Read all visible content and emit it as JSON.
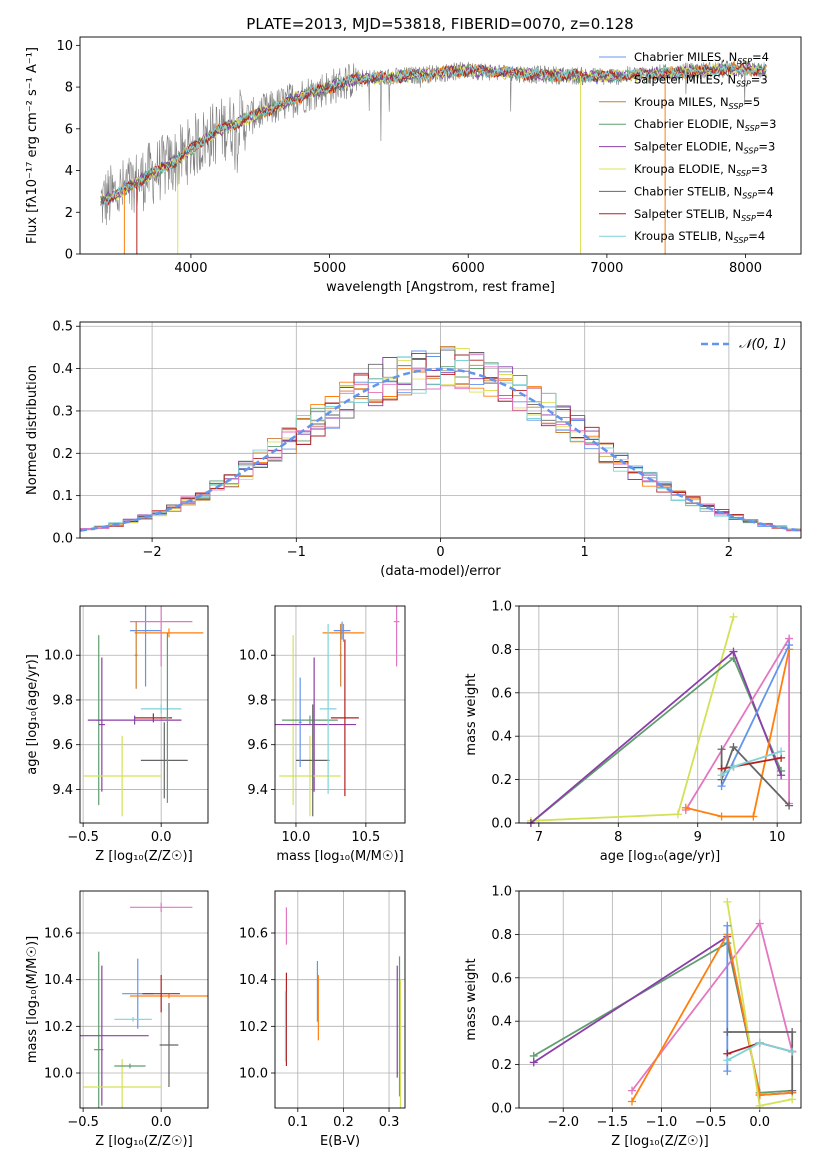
{
  "title": "PLATE=2013, MJD=53818, FIBERID=0070, z=0.128",
  "colors": {
    "series": [
      "#6495ed",
      "#ff7f0e",
      "#cd7f32",
      "#5f9e6e",
      "#8b3fa8",
      "#dde05a",
      "#666666",
      "#b22222",
      "#7fd3d9"
    ],
    "pink": "#e377c2",
    "yellowgreen": "#d4e157",
    "gray": "#808080"
  },
  "chart_data": [
    {
      "type": "line",
      "id": "spectrum",
      "xlabel": "wavelength [Angstrom, rest frame]",
      "ylabel": "Flux [fλ10⁻¹⁷ erg cm⁻² s⁻¹ A⁻¹]",
      "xlim": [
        3200,
        8400
      ],
      "ylim": [
        0,
        10.4
      ],
      "xticks": [
        4000,
        5000,
        6000,
        7000,
        8000
      ],
      "yticks": [
        0,
        2,
        4,
        6,
        8,
        10
      ],
      "grid": false,
      "legend_position": "right",
      "data_range": [
        3350,
        8150
      ],
      "continuum": [
        [
          3350,
          2.5
        ],
        [
          3500,
          3.0
        ],
        [
          3700,
          3.8
        ],
        [
          3900,
          4.5
        ],
        [
          4050,
          5.3
        ],
        [
          4200,
          5.9
        ],
        [
          4400,
          6.5
        ],
        [
          4600,
          7.0
        ],
        [
          4800,
          7.6
        ],
        [
          5000,
          8.0
        ],
        [
          5200,
          8.4
        ],
        [
          5500,
          8.5
        ],
        [
          6000,
          8.8
        ],
        [
          6500,
          8.6
        ],
        [
          7000,
          8.5
        ],
        [
          7500,
          8.7
        ],
        [
          8000,
          8.9
        ],
        [
          8150,
          8.8
        ]
      ],
      "legend": [
        {
          "label": "Chabrier MILES, N",
          "sub": "SSP",
          "tail": "=4",
          "color": "#6495ed"
        },
        {
          "label": "Salpeter MILES, N",
          "sub": "SSP",
          "tail": "=3",
          "color": "#ff7f0e"
        },
        {
          "label": "Kroupa MILES, N",
          "sub": "SSP",
          "tail": "=5",
          "color": "#cd7f32"
        },
        {
          "label": "Chabrier ELODIE, N",
          "sub": "SSP",
          "tail": "=3",
          "color": "#5f9e6e"
        },
        {
          "label": "Salpeter ELODIE, N",
          "sub": "SSP",
          "tail": "=3",
          "color": "#8b3fa8"
        },
        {
          "label": "Kroupa ELODIE, N",
          "sub": "SSP",
          "tail": "=3",
          "color": "#dde05a"
        },
        {
          "label": "Chabrier STELIB, N",
          "sub": "SSP",
          "tail": "=4",
          "color": "#666666"
        },
        {
          "label": "Salpeter STELIB, N",
          "sub": "SSP",
          "tail": "=4",
          "color": "#b22222"
        },
        {
          "label": "Kroupa STELIB, N",
          "sub": "SSP",
          "tail": "=4",
          "color": "#7fd3d9"
        }
      ]
    },
    {
      "type": "line",
      "id": "residuals",
      "xlabel": "(data-model)/error",
      "ylabel": "Normed distribution",
      "xlim": [
        -2.5,
        2.5
      ],
      "ylim": [
        0,
        0.51
      ],
      "xticks": [
        -2,
        -1,
        0,
        1,
        2
      ],
      "xtick_labels": [
        "−2",
        "−1",
        "0",
        "1",
        "2"
      ],
      "yticks": [
        0.0,
        0.1,
        0.2,
        0.3,
        0.4,
        0.5
      ],
      "ytick_labels": [
        "0.0",
        "0.1",
        "0.2",
        "0.3",
        "0.4",
        "0.5"
      ],
      "grid": true,
      "legend": [
        {
          "label": "𝒩(0, 1)",
          "color": "#6495ed"
        }
      ],
      "legend_position": "top-right",
      "bin_width": 0.1
    },
    {
      "type": "scatter",
      "id": "age-vs-Z",
      "xlabel": "Z [log₁₀(Z/Z☉)]",
      "ylabel": "age  [log₁₀(age/yr)]",
      "xlim": [
        -0.52,
        0.3
      ],
      "ylim": [
        9.25,
        10.22
      ],
      "xticks": [
        -0.5,
        0.0
      ],
      "xtick_labels": [
        "−0.5",
        "0.0"
      ],
      "yticks": [
        9.4,
        9.6,
        9.8,
        10.0
      ],
      "ytick_labels": [
        "9.4",
        "9.6",
        "9.8",
        "10.0"
      ],
      "grid": true,
      "points": [
        {
          "x": -0.1,
          "y": 10.11,
          "xerr": 0.1,
          "yerr": 0.25,
          "color": "#6495ed"
        },
        {
          "x": 0.05,
          "y": 10.1,
          "xerr": 0.22,
          "yerr": 0.02,
          "color": "#ff7f0e"
        },
        {
          "x": 0.0,
          "y": 10.15,
          "xerr": 0.2,
          "yerr": 0.2,
          "color": "#e377c2"
        },
        {
          "x": -0.4,
          "y": 9.71,
          "xerr": 0.02,
          "yerr": 0.38,
          "color": "#5f9e6e"
        },
        {
          "x": -0.38,
          "y": 9.69,
          "xerr": 0.02,
          "yerr": 0.3,
          "color": "#8b3fa8"
        },
        {
          "x": -0.25,
          "y": 9.46,
          "xerr": 0.25,
          "yerr": 0.18,
          "color": "#d4e157"
        },
        {
          "x": 0.02,
          "y": 9.53,
          "xerr": 0.15,
          "yerr": 0.17,
          "color": "#666666"
        },
        {
          "x": -0.05,
          "y": 9.72,
          "xerr": 0.12,
          "yerr": 0.02,
          "color": "#b22222"
        },
        {
          "x": 0.0,
          "y": 9.76,
          "xerr": 0.13,
          "yerr": 0.02,
          "color": "#7fd3d9"
        },
        {
          "x": -0.17,
          "y": 9.71,
          "xerr": 0.3,
          "yerr": 0.02,
          "color": "#8b3fa8"
        },
        {
          "x": -0.16,
          "y": 10.0,
          "xerr": 0.01,
          "yerr": 0.15,
          "color": "#cd7f32"
        },
        {
          "x": 0.04,
          "y": 9.72,
          "xerr": 0.01,
          "yerr": 0.38,
          "color": "#5f9e6e"
        }
      ]
    },
    {
      "type": "scatter",
      "id": "age-vs-mass",
      "xlabel": "mass [log₁₀(M/M☉)]",
      "ylabel": "",
      "xlim": [
        9.85,
        10.78
      ],
      "ylim": [
        9.25,
        10.22
      ],
      "xticks": [
        10.0,
        10.5
      ],
      "xtick_labels": [
        "10.0",
        "10.5"
      ],
      "yticks": [
        9.4,
        9.6,
        9.8,
        10.0
      ],
      "ytick_labels": [
        "9.4",
        "9.6",
        "9.8",
        "10.0"
      ],
      "grid": true,
      "points": [
        {
          "x": 10.72,
          "y": 10.15,
          "xerr": 0.02,
          "yerr": 0.2,
          "color": "#e377c2"
        },
        {
          "x": 10.34,
          "y": 10.1,
          "xerr": 0.15,
          "yerr": 0.04,
          "color": "#ff7f0e"
        },
        {
          "x": 10.33,
          "y": 10.11,
          "xerr": 0.06,
          "yerr": 0.04,
          "color": "#6495ed"
        },
        {
          "x": 9.98,
          "y": 9.71,
          "xerr": 0.03,
          "yerr": 0.38,
          "color": "#d4e157"
        },
        {
          "x": 10.1,
          "y": 9.71,
          "xerr": 0.2,
          "yerr": 0.02,
          "color": "#5f9e6e"
        },
        {
          "x": 10.13,
          "y": 9.69,
          "xerr": 0.3,
          "yerr": 0.3,
          "color": "#8b3fa8"
        },
        {
          "x": 10.1,
          "y": 9.46,
          "xerr": 0.22,
          "yerr": 0.18,
          "color": "#d4e157"
        },
        {
          "x": 10.12,
          "y": 9.53,
          "xerr": 0.12,
          "yerr": 0.25,
          "color": "#666666"
        },
        {
          "x": 10.35,
          "y": 9.72,
          "xerr": 0.1,
          "yerr": 0.35,
          "color": "#b22222"
        },
        {
          "x": 10.23,
          "y": 9.76,
          "xerr": 0.06,
          "yerr": 0.38,
          "color": "#7fd3d9"
        },
        {
          "x": 10.32,
          "y": 10.0,
          "xerr": 0.01,
          "yerr": 0.14,
          "color": "#cd7f32"
        },
        {
          "x": 10.03,
          "y": 9.7,
          "xerr": 0.01,
          "yerr": 0.2,
          "color": "#6495ed"
        }
      ]
    },
    {
      "type": "line",
      "id": "weight-vs-age",
      "xlabel": "age  [log₁₀(age/yr)]",
      "ylabel": "mass weight",
      "xlim": [
        6.75,
        10.3
      ],
      "ylim": [
        0,
        1.0
      ],
      "xticks": [
        7,
        8,
        9,
        10
      ],
      "xtick_labels": [
        "7",
        "8",
        "9",
        "10"
      ],
      "yticks": [
        0.0,
        0.2,
        0.4,
        0.6,
        0.8,
        1.0
      ],
      "ytick_labels": [
        "0.0",
        "0.2",
        "0.4",
        "0.6",
        "0.8",
        "1.0"
      ],
      "grid": true,
      "series": [
        {
          "color": "#d4e157",
          "x": [
            6.9,
            8.75,
            9.45
          ],
          "y": [
            0.01,
            0.04,
            0.95
          ]
        },
        {
          "color": "#5f9e6e",
          "x": [
            6.9,
            9.45,
            10.05
          ],
          "y": [
            0.0,
            0.76,
            0.24
          ]
        },
        {
          "color": "#8b3fa8",
          "x": [
            6.9,
            9.45,
            10.05
          ],
          "y": [
            0.0,
            0.79,
            0.22
          ]
        },
        {
          "color": "#e377c2",
          "x": [
            8.85,
            10.15,
            10.15
          ],
          "y": [
            0.06,
            0.85,
            0.09
          ]
        },
        {
          "color": "#ff7f0e",
          "x": [
            8.85,
            9.3,
            9.7,
            10.15
          ],
          "y": [
            0.07,
            0.03,
            0.03,
            0.8
          ]
        },
        {
          "color": "#6495ed",
          "x": [
            9.3,
            10.15
          ],
          "y": [
            0.17,
            0.82
          ]
        },
        {
          "color": "#666666",
          "x": [
            9.3,
            9.3,
            9.45,
            10.15
          ],
          "y": [
            0.34,
            0.2,
            0.35,
            0.08
          ]
        },
        {
          "color": "#b22222",
          "x": [
            9.3,
            9.45,
            10.05
          ],
          "y": [
            0.25,
            0.26,
            0.3
          ]
        },
        {
          "color": "#7fd3d9",
          "x": [
            9.3,
            9.45,
            10.05
          ],
          "y": [
            0.22,
            0.26,
            0.33
          ]
        }
      ]
    },
    {
      "type": "scatter",
      "id": "mass-vs-Z",
      "xlabel": "Z [log₁₀(Z/Z☉)]",
      "ylabel": "mass [log₁₀(M/M☉)]",
      "xlim": [
        -0.52,
        0.3
      ],
      "ylim": [
        9.85,
        10.78
      ],
      "xticks": [
        -0.5,
        0.0
      ],
      "xtick_labels": [
        "−0.5",
        "0.0"
      ],
      "yticks": [
        10.0,
        10.2,
        10.4,
        10.6
      ],
      "ytick_labels": [
        "10.0",
        "10.2",
        "10.4",
        "10.6"
      ],
      "grid": true,
      "points": [
        {
          "x": 0.0,
          "y": 10.71,
          "xerr": 0.2,
          "yerr": 0.02,
          "color": "#e377c2"
        },
        {
          "x": -0.15,
          "y": 10.34,
          "xerr": 0.1,
          "yerr": 0.15,
          "color": "#6495ed"
        },
        {
          "x": 0.05,
          "y": 10.33,
          "xerr": 0.25,
          "yerr": 0.01,
          "color": "#ff7f0e"
        },
        {
          "x": 0.0,
          "y": 10.34,
          "xerr": 0.12,
          "yerr": 0.08,
          "color": "#b22222"
        },
        {
          "x": -0.4,
          "y": 10.1,
          "xerr": 0.03,
          "yerr": 0.42,
          "color": "#5f9e6e"
        },
        {
          "x": -0.38,
          "y": 10.16,
          "xerr": 0.3,
          "yerr": 0.3,
          "color": "#8b3fa8"
        },
        {
          "x": -0.25,
          "y": 9.94,
          "xerr": 0.25,
          "yerr": 0.12,
          "color": "#d4e157"
        },
        {
          "x": 0.05,
          "y": 10.12,
          "xerr": 0.06,
          "yerr": 0.18,
          "color": "#666666"
        },
        {
          "x": -0.2,
          "y": 10.03,
          "xerr": 0.1,
          "yerr": 0.01,
          "color": "#5f9e6e"
        },
        {
          "x": -0.18,
          "y": 10.23,
          "xerr": 0.12,
          "yerr": 0.01,
          "color": "#7fd3d9"
        }
      ]
    },
    {
      "type": "scatter",
      "id": "mass-vs-EBV",
      "xlabel": "E(B-V)",
      "ylabel": "",
      "xlim": [
        0.05,
        0.335
      ],
      "ylim": [
        9.85,
        10.78
      ],
      "xticks": [
        0.1,
        0.2,
        0.3
      ],
      "xtick_labels": [
        "0.1",
        "0.2",
        "0.3"
      ],
      "yticks": [
        10.0,
        10.2,
        10.4,
        10.6
      ],
      "ytick_labels": [
        "10.0",
        "10.2",
        "10.4",
        "10.6"
      ],
      "grid": true,
      "points": [
        {
          "x": 0.075,
          "y": 10.23,
          "yerr": 0.2,
          "color": "#b22222"
        },
        {
          "x": 0.073,
          "y": 10.2,
          "yerr": 0.15,
          "color": "#7fd3d9"
        },
        {
          "x": 0.075,
          "y": 10.63,
          "yerr": 0.08,
          "color": "#e377c2"
        },
        {
          "x": 0.145,
          "y": 10.28,
          "yerr": 0.14,
          "color": "#ff7f0e"
        },
        {
          "x": 0.143,
          "y": 10.35,
          "yerr": 0.13,
          "color": "#6495ed"
        },
        {
          "x": 0.318,
          "y": 10.22,
          "yerr": 0.24,
          "color": "#8b3fa8"
        },
        {
          "x": 0.323,
          "y": 10.2,
          "yerr": 0.3,
          "color": "#5f9e6e"
        },
        {
          "x": 0.325,
          "y": 10.1,
          "yerr": 0.3,
          "color": "#d4e157"
        }
      ]
    },
    {
      "type": "line",
      "id": "weight-vs-Z",
      "xlabel": "Z [log₁₀(Z/Z☉)]",
      "ylabel": "mass weight",
      "xlim": [
        -2.45,
        0.42
      ],
      "ylim": [
        0,
        1.0
      ],
      "xticks": [
        -2.0,
        -1.5,
        -1.0,
        -0.5,
        0.0
      ],
      "xtick_labels": [
        "−2.0",
        "−1.5",
        "−1.0",
        "−0.5",
        "0.0"
      ],
      "yticks": [
        0.0,
        0.2,
        0.4,
        0.6,
        0.8,
        1.0
      ],
      "ytick_labels": [
        "0.0",
        "0.2",
        "0.4",
        "0.6",
        "0.8",
        "1.0"
      ],
      "grid": true,
      "series": [
        {
          "color": "#5f9e6e",
          "x": [
            -2.3,
            -0.33,
            0.0,
            0.33
          ],
          "y": [
            0.24,
            0.76,
            0.07,
            0.08
          ]
        },
        {
          "color": "#8b3fa8",
          "x": [
            -2.3,
            -0.33,
            0.0,
            0.33
          ],
          "y": [
            0.21,
            0.79,
            0.06,
            0.07
          ]
        },
        {
          "color": "#e377c2",
          "x": [
            -1.3,
            0.0,
            0.33
          ],
          "y": [
            0.08,
            0.85,
            0.26
          ]
        },
        {
          "color": "#ff7f0e",
          "x": [
            -1.3,
            -0.33,
            0.0,
            0.33
          ],
          "y": [
            0.03,
            0.8,
            0.06,
            0.07
          ]
        },
        {
          "color": "#d4e157",
          "x": [
            -0.33,
            0.0,
            0.33
          ],
          "y": [
            0.95,
            0.01,
            0.04
          ]
        },
        {
          "color": "#6495ed",
          "x": [
            -0.33,
            -0.33
          ],
          "y": [
            0.17,
            0.84
          ]
        },
        {
          "color": "#666666",
          "x": [
            -0.33,
            0.33,
            0.33
          ],
          "y": [
            0.35,
            0.35,
            0.08
          ]
        },
        {
          "color": "#b22222",
          "x": [
            -0.33,
            0.0,
            0.33
          ],
          "y": [
            0.25,
            0.3,
            0.26
          ]
        },
        {
          "color": "#7fd3d9",
          "x": [
            -0.33,
            0.0,
            0.33
          ],
          "y": [
            0.22,
            0.3,
            0.26
          ]
        }
      ]
    }
  ]
}
